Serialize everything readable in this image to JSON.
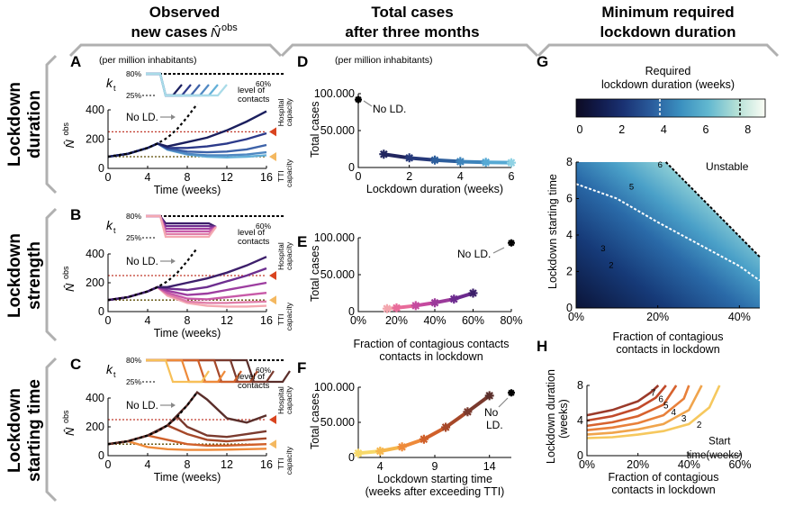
{
  "titles": {
    "col1_line1": "Observed",
    "col1_line2": "new cases",
    "col1_symbol": "N̂",
    "col1_sup": "obs",
    "col2_line1": "Total cases",
    "col2_line2": "after three months",
    "col3_line1": "Minimum required",
    "col3_line2": "lockdown duration"
  },
  "row_labels": [
    {
      "line1": "Lockdown",
      "line2": "duration"
    },
    {
      "line1": "Lockdown",
      "line2": "strength"
    },
    {
      "line1": "Lockdown",
      "line2": "starting time"
    }
  ],
  "panel_letters": {
    "A": "A",
    "B": "B",
    "C": "C",
    "D": "D",
    "E": "E",
    "F": "F",
    "G": "G",
    "H": "H"
  },
  "annotations": {
    "per_million": "(per million inhabitants)",
    "per_million_d": "(per million inhabitants)",
    "kt": "k",
    "kt_sub": "t",
    "kt_80": "80%",
    "kt_25": "25%",
    "kt_60": "60%",
    "level_contacts_1": "level of",
    "level_contacts_2": "contacts",
    "no_ld": "No LD.",
    "no_ld_f1": "No",
    "no_ld_f2": "LD.",
    "hospital_1": "Hospital",
    "hospital_2": "capacity",
    "tti_1": "TTI",
    "tti_2": "capacity",
    "nobs": "N̂",
    "nobs_sup": "obs",
    "unstable": "Unstable",
    "start_time_1": "Start",
    "start_time_2": "time(weeks)",
    "colorbar_title_1": "Required",
    "colorbar_title_2": "lockdown duration (weeks)"
  },
  "colors": {
    "duration": [
      "#1b1f5e",
      "#2c3a8a",
      "#3d62a8",
      "#4f88c2",
      "#64b0d8",
      "#a9dbe8"
    ],
    "strength": [
      "#3d1f6b",
      "#6d2e8f",
      "#9d3ea0",
      "#c85aa8",
      "#e07fa9",
      "#f4a9b2"
    ],
    "start": [
      "#5a2e2a",
      "#7a3a2e",
      "#a64829",
      "#d0602a",
      "#ee8a3a",
      "#f7c058"
    ],
    "hospital": "#c0392b",
    "hospital_marker": "#d9441f",
    "tti": "#e8c04a",
    "tti_marker": "#f4b860",
    "bracket": "#b0b0b0",
    "gray_text": "#8a8a8a"
  },
  "chart_data": [
    {
      "id": "A",
      "type": "line",
      "xlabel": "Time (weeks)",
      "ylabel": "N̂obs",
      "xlim": [
        0,
        16
      ],
      "ylim": [
        0,
        400
      ],
      "xticks": [
        "0",
        "4",
        "8",
        "12",
        "16"
      ],
      "yticks": [
        "0",
        "200",
        "400"
      ],
      "hospital_capacity": 250,
      "tti_capacity": 80,
      "no_lockdown": {
        "x": [
          0,
          2,
          4,
          5,
          6,
          7,
          8,
          9
        ],
        "y": [
          80,
          100,
          140,
          170,
          210,
          270,
          350,
          440
        ]
      },
      "series": [
        {
          "x": [
            0,
            2,
            4,
            5,
            6,
            8,
            10,
            12,
            14,
            16
          ],
          "y": [
            80,
            100,
            140,
            170,
            150,
            180,
            210,
            260,
            320,
            390
          ]
        },
        {
          "x": [
            0,
            2,
            4,
            5,
            6,
            8,
            10,
            12,
            14,
            16
          ],
          "y": [
            80,
            100,
            140,
            170,
            140,
            140,
            150,
            170,
            200,
            240
          ]
        },
        {
          "x": [
            0,
            2,
            4,
            5,
            6,
            8,
            10,
            12,
            14,
            16
          ],
          "y": [
            80,
            100,
            140,
            170,
            135,
            115,
            110,
            115,
            130,
            160
          ]
        },
        {
          "x": [
            0,
            2,
            4,
            5,
            6,
            8,
            10,
            12,
            14,
            16
          ],
          "y": [
            80,
            100,
            140,
            170,
            130,
            100,
            90,
            90,
            95,
            110
          ]
        },
        {
          "x": [
            0,
            2,
            4,
            5,
            6,
            8,
            10,
            12,
            14,
            16
          ],
          "y": [
            80,
            100,
            140,
            170,
            128,
            95,
            80,
            75,
            80,
            90
          ]
        }
      ]
    },
    {
      "id": "B",
      "type": "line",
      "xlabel": "Time (weeks)",
      "ylabel": "N̂obs",
      "xlim": [
        0,
        16
      ],
      "ylim": [
        0,
        400
      ],
      "xticks": [
        "0",
        "4",
        "8",
        "12",
        "16"
      ],
      "yticks": [
        "0",
        "200",
        "400"
      ],
      "hospital_capacity": 250,
      "tti_capacity": 80,
      "no_lockdown": {
        "x": [
          0,
          2,
          4,
          5,
          6,
          7,
          8,
          9
        ],
        "y": [
          80,
          100,
          140,
          170,
          210,
          270,
          350,
          440
        ]
      },
      "series": [
        {
          "x": [
            0,
            2,
            4,
            5,
            6,
            8,
            10,
            12,
            14,
            16
          ],
          "y": [
            80,
            100,
            140,
            170,
            170,
            200,
            230,
            270,
            320,
            380
          ]
        },
        {
          "x": [
            0,
            2,
            4,
            5,
            6,
            8,
            10,
            12,
            14,
            16
          ],
          "y": [
            80,
            100,
            140,
            170,
            160,
            150,
            170,
            210,
            250,
            300
          ]
        },
        {
          "x": [
            0,
            2,
            4,
            5,
            6,
            8,
            10,
            12,
            14,
            16
          ],
          "y": [
            80,
            100,
            140,
            170,
            145,
            115,
            125,
            150,
            175,
            200
          ]
        },
        {
          "x": [
            0,
            2,
            4,
            5,
            6,
            8,
            10,
            12,
            14,
            16
          ],
          "y": [
            80,
            100,
            140,
            170,
            130,
            90,
            85,
            100,
            115,
            130
          ]
        },
        {
          "x": [
            0,
            2,
            4,
            5,
            6,
            8,
            10,
            12,
            14,
            16
          ],
          "y": [
            80,
            100,
            140,
            170,
            120,
            70,
            60,
            60,
            65,
            70
          ]
        },
        {
          "x": [
            0,
            2,
            4,
            5,
            6,
            8,
            10,
            12,
            14,
            16
          ],
          "y": [
            80,
            100,
            140,
            170,
            110,
            60,
            40,
            35,
            35,
            40
          ]
        }
      ]
    },
    {
      "id": "C",
      "type": "line",
      "xlabel": "Time (weeks)",
      "ylabel": "N̂obs",
      "xlim": [
        0,
        16
      ],
      "ylim": [
        0,
        400
      ],
      "xticks": [
        "0",
        "4",
        "8",
        "12",
        "16"
      ],
      "yticks": [
        "0",
        "200",
        "400"
      ],
      "hospital_capacity": 250,
      "tti_capacity": 80,
      "no_lockdown": {
        "x": [
          0,
          2,
          4,
          5,
          6,
          7,
          8,
          9
        ],
        "y": [
          80,
          100,
          140,
          170,
          210,
          270,
          350,
          440
        ]
      },
      "series": [
        {
          "x": [
            0,
            2,
            4,
            6,
            8,
            9,
            10,
            12,
            14,
            16
          ],
          "y": [
            80,
            100,
            140,
            210,
            350,
            450,
            390,
            260,
            230,
            280
          ]
        },
        {
          "x": [
            0,
            2,
            4,
            6,
            7,
            8,
            10,
            12,
            14,
            16
          ],
          "y": [
            80,
            100,
            140,
            210,
            270,
            200,
            140,
            130,
            150,
            170
          ]
        },
        {
          "x": [
            0,
            2,
            4,
            5,
            6,
            8,
            10,
            12,
            14,
            16
          ],
          "y": [
            80,
            100,
            140,
            170,
            210,
            150,
            110,
            100,
            110,
            120
          ]
        },
        {
          "x": [
            0,
            2,
            3,
            4,
            6,
            8,
            10,
            12,
            14,
            16
          ],
          "y": [
            80,
            100,
            120,
            140,
            110,
            80,
            70,
            70,
            75,
            80
          ]
        },
        {
          "x": [
            0,
            1,
            2,
            3,
            4,
            6,
            8,
            10,
            12,
            14,
            16
          ],
          "y": [
            80,
            90,
            100,
            80,
            60,
            45,
            40,
            40,
            42,
            45,
            48
          ]
        }
      ]
    },
    {
      "id": "D",
      "type": "line",
      "xlabel": "Lockdown duration (weeks)",
      "ylabel": "Total cases",
      "xlim": [
        0,
        6
      ],
      "ylim": [
        0,
        100000
      ],
      "xticks": [
        "0",
        "2",
        "4",
        "6"
      ],
      "yticks": [
        "0",
        "50.000",
        "100.000"
      ],
      "no_lockdown": {
        "x": 0,
        "y": 92000
      },
      "points": {
        "x": [
          1,
          2,
          3,
          4,
          5,
          6
        ],
        "y": [
          18000,
          13000,
          10000,
          8000,
          7000,
          6500
        ]
      }
    },
    {
      "id": "E",
      "type": "line",
      "xlabel": "Fraction of contagious contacts in lockdown",
      "ylabel": "Total cases",
      "xlim": [
        0,
        80
      ],
      "ylim": [
        0,
        100000
      ],
      "xticks": [
        "0%",
        "20%",
        "40%",
        "60%",
        "80%"
      ],
      "yticks": [
        "0",
        "50.000",
        "100.000"
      ],
      "no_lockdown": {
        "x": 80,
        "y": 93000
      },
      "points": {
        "x": [
          15,
          20,
          30,
          40,
          50,
          60
        ],
        "y": [
          4000,
          5000,
          8000,
          12000,
          17000,
          25000
        ]
      }
    },
    {
      "id": "F",
      "type": "line",
      "xlabel": "Lockdown starting time",
      "xlabel2": "(weeks after exceeding TTI)",
      "ylabel": "Total cases",
      "xlim": [
        2,
        16
      ],
      "ylim": [
        0,
        100000
      ],
      "xticks": [
        "4",
        "9",
        "14"
      ],
      "yticks": [
        "0",
        "50.000",
        "100.000"
      ],
      "no_lockdown": {
        "x": 16,
        "y": 92000
      },
      "points": {
        "x": [
          2,
          4,
          6,
          8,
          10,
          12,
          14
        ],
        "y": [
          6000,
          9000,
          15000,
          26000,
          43000,
          65000,
          88000
        ]
      }
    },
    {
      "id": "G",
      "type": "heatmap",
      "xlabel": "Fraction of contagious contacts in lockdown",
      "ylabel": "Lockdown starting time",
      "xlim": [
        0,
        45
      ],
      "ylim": [
        0,
        8
      ],
      "xticks": [
        "0%",
        "20%",
        "40%"
      ],
      "yticks": [
        "0",
        "2",
        "4",
        "6",
        "8"
      ],
      "colorbar": {
        "ticks": [
          "0",
          "2",
          "4",
          "6",
          "8"
        ],
        "range": [
          0,
          9
        ]
      },
      "contour_labels": [
        "2",
        "3",
        "5",
        "6"
      ],
      "unstable_boundary": {
        "x": [
          22,
          45
        ],
        "y": [
          8,
          2.8
        ]
      },
      "contour_4weeks": {
        "x": [
          0,
          10,
          20,
          30,
          40,
          45
        ],
        "y": [
          6.8,
          6,
          4.7,
          3.5,
          2.3,
          1.5
        ]
      }
    },
    {
      "id": "H",
      "type": "line",
      "xlabel": "Fraction of contagious",
      "xlabel2": "contacts in lockdown",
      "ylabel": "Lockdown duration",
      "ylabel2": "(weeks)",
      "xlim": [
        0,
        60
      ],
      "ylim": [
        0,
        8
      ],
      "xticks": [
        "0%",
        "20%",
        "40%",
        "60%"
      ],
      "yticks": [
        "0",
        "4",
        "8"
      ],
      "curve_labels": [
        "7",
        "6",
        "5",
        "4",
        "3",
        "2"
      ],
      "series": [
        {
          "name": "7",
          "x": [
            0,
            10,
            20,
            25,
            28
          ],
          "y": [
            4.6,
            5.2,
            6.2,
            7.2,
            8
          ]
        },
        {
          "name": "6",
          "x": [
            0,
            10,
            20,
            27,
            31
          ],
          "y": [
            4.0,
            4.5,
            5.4,
            6.6,
            8
          ]
        },
        {
          "name": "5",
          "x": [
            0,
            10,
            20,
            30,
            35
          ],
          "y": [
            3.4,
            3.8,
            4.5,
            5.8,
            8
          ]
        },
        {
          "name": "4",
          "x": [
            0,
            10,
            20,
            30,
            38,
            40
          ],
          "y": [
            2.9,
            3.2,
            3.7,
            4.6,
            6.5,
            8
          ]
        },
        {
          "name": "3",
          "x": [
            0,
            10,
            20,
            30,
            40,
            45
          ],
          "y": [
            2.4,
            2.6,
            3.0,
            3.6,
            5.2,
            8
          ]
        },
        {
          "name": "2",
          "x": [
            0,
            10,
            20,
            30,
            40,
            48,
            52
          ],
          "y": [
            2.0,
            2.1,
            2.4,
            2.8,
            3.6,
            5.5,
            8
          ]
        }
      ]
    }
  ]
}
